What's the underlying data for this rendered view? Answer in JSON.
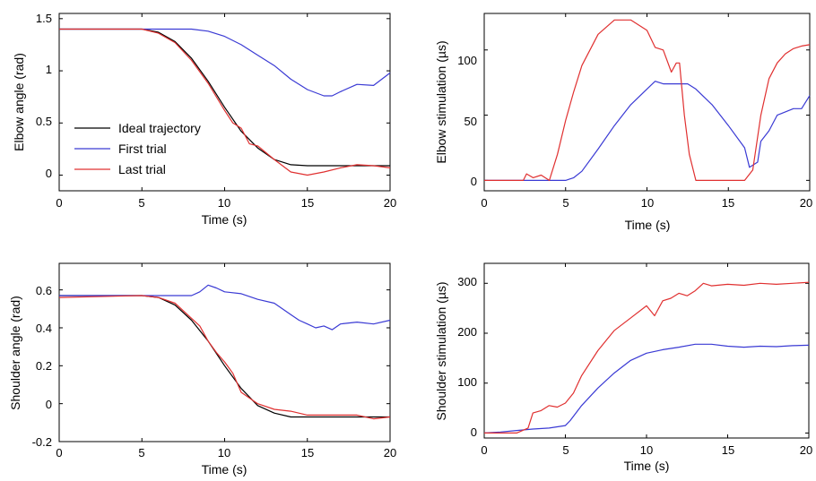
{
  "chart_data": [
    {
      "id": "elbow-angle",
      "type": "line",
      "xlabel": "Time (s)",
      "ylabel": "Elbow angle (rad)",
      "xlim": [
        0,
        20
      ],
      "ylim": [
        -0.15,
        1.55
      ],
      "xticks": [
        0,
        5,
        10,
        15,
        20
      ],
      "xtick_labels": [
        "0",
        "5",
        "10",
        "15",
        "20"
      ],
      "yticks": [
        0,
        0.5,
        1,
        1.5
      ],
      "ytick_labels": [
        "0",
        "0.5",
        "1",
        "1.5"
      ],
      "legend": {
        "placement": "center-left",
        "entries": [
          "Ideal trajectory",
          "First trial",
          "Last trial"
        ]
      },
      "series": [
        {
          "name": "Ideal trajectory",
          "color": "#000000",
          "x": [
            0,
            5,
            6,
            7,
            8,
            9,
            10,
            11,
            12,
            13,
            14,
            15,
            20
          ],
          "y": [
            1.4,
            1.4,
            1.37,
            1.28,
            1.12,
            0.9,
            0.65,
            0.42,
            0.26,
            0.15,
            0.1,
            0.09,
            0.09
          ]
        },
        {
          "name": "First trial",
          "color": "#3a3ad4",
          "x": [
            0,
            5,
            8,
            9,
            10,
            11,
            12,
            13,
            14,
            15,
            16,
            16.5,
            17,
            18,
            19,
            20
          ],
          "y": [
            1.4,
            1.4,
            1.4,
            1.38,
            1.33,
            1.25,
            1.15,
            1.05,
            0.92,
            0.82,
            0.76,
            0.76,
            0.8,
            0.87,
            0.86,
            0.98
          ]
        },
        {
          "name": "Last trial",
          "color": "#e03030",
          "x": [
            0,
            5,
            6,
            7,
            8,
            9,
            10,
            10.5,
            11,
            11.5,
            12,
            13,
            14,
            15,
            16,
            17,
            18,
            19,
            20
          ],
          "y": [
            1.4,
            1.4,
            1.36,
            1.27,
            1.1,
            0.88,
            0.62,
            0.5,
            0.45,
            0.3,
            0.28,
            0.15,
            0.03,
            0.0,
            0.03,
            0.07,
            0.1,
            0.09,
            0.07
          ]
        }
      ]
    },
    {
      "id": "elbow-stimulation",
      "type": "line",
      "xlabel": "Time (s)",
      "ylabel": "Elbow stimulation (µs)",
      "xlim": [
        0,
        20
      ],
      "ylim": [
        -8,
        128
      ],
      "xticks": [
        0,
        5,
        10,
        15,
        20
      ],
      "xtick_labels": [
        "0",
        "5",
        "10",
        "15",
        "20"
      ],
      "yticks": [
        0,
        50,
        100
      ],
      "ytick_labels": [
        "0",
        "50",
        "100"
      ],
      "series": [
        {
          "name": "Elbow stimulation, blue",
          "color": "#3a3ad4",
          "x": [
            0,
            5,
            5.5,
            6,
            7,
            8,
            9,
            10,
            10.5,
            11,
            12,
            12.5,
            13,
            14,
            15,
            16,
            16.3,
            16.8,
            17,
            17.5,
            18,
            19,
            19.5,
            20
          ],
          "y": [
            0,
            0,
            2,
            7,
            24,
            42,
            58,
            70,
            76,
            74,
            74,
            74,
            70,
            58,
            42,
            25,
            10,
            14,
            30,
            38,
            50,
            55,
            55,
            65
          ]
        },
        {
          "name": "Elbow stimulation, red",
          "color": "#e03030",
          "x": [
            0,
            2.4,
            2.6,
            3,
            3.5,
            4,
            4.5,
            5,
            5.5,
            6,
            7,
            8,
            9,
            10,
            10.5,
            11,
            11.5,
            11.8,
            12,
            12.3,
            12.6,
            13,
            13.2,
            16,
            16.5,
            17,
            17.5,
            18,
            18.5,
            19,
            19.5,
            20
          ],
          "y": [
            0,
            0,
            5,
            2,
            4,
            0,
            20,
            46,
            68,
            88,
            112,
            123,
            123,
            115,
            102,
            100,
            83,
            90,
            90,
            50,
            20,
            0,
            0,
            0,
            8,
            50,
            78,
            90,
            97,
            101,
            103,
            104
          ]
        }
      ]
    },
    {
      "id": "shoulder-angle",
      "type": "line",
      "xlabel": "Time (s)",
      "ylabel": "Shoulder angle (rad)",
      "xlim": [
        0,
        20
      ],
      "ylim": [
        -0.2,
        0.74
      ],
      "xticks": [
        0,
        5,
        10,
        15,
        20
      ],
      "xtick_labels": [
        "0",
        "5",
        "10",
        "15",
        "20"
      ],
      "yticks": [
        -0.2,
        0,
        0.2,
        0.4,
        0.6
      ],
      "ytick_labels": [
        "-0.2",
        "0",
        "0.2",
        "0.4",
        "0.6"
      ],
      "series": [
        {
          "name": "Ideal trajectory",
          "color": "#000000",
          "x": [
            0,
            5,
            6,
            7,
            8,
            9,
            10,
            11,
            12,
            13,
            14,
            15,
            20
          ],
          "y": [
            0.57,
            0.57,
            0.56,
            0.52,
            0.44,
            0.33,
            0.2,
            0.08,
            -0.01,
            -0.05,
            -0.07,
            -0.07,
            -0.07
          ]
        },
        {
          "name": "First trial",
          "color": "#3a3ad4",
          "x": [
            0,
            5,
            8,
            8.5,
            9,
            9.5,
            10,
            11,
            12,
            13,
            14,
            14.5,
            15,
            15.5,
            16,
            16.5,
            17,
            18,
            19,
            20
          ],
          "y": [
            0.57,
            0.57,
            0.57,
            0.59,
            0.625,
            0.61,
            0.59,
            0.58,
            0.55,
            0.53,
            0.47,
            0.44,
            0.42,
            0.4,
            0.41,
            0.39,
            0.42,
            0.43,
            0.42,
            0.44
          ]
        },
        {
          "name": "Last trial",
          "color": "#e03030",
          "x": [
            0,
            5,
            6,
            7,
            8,
            8.5,
            9,
            9.5,
            10,
            10.5,
            11,
            12,
            13,
            14,
            15,
            16,
            17,
            18,
            19,
            20
          ],
          "y": [
            0.56,
            0.57,
            0.56,
            0.53,
            0.45,
            0.41,
            0.33,
            0.27,
            0.22,
            0.16,
            0.06,
            0.0,
            -0.03,
            -0.04,
            -0.06,
            -0.06,
            -0.06,
            -0.06,
            -0.08,
            -0.07
          ]
        }
      ]
    },
    {
      "id": "shoulder-stimulation",
      "type": "line",
      "xlabel": "Time (s)",
      "ylabel": "Shoulder stimulation (µs)",
      "xlim": [
        0,
        20
      ],
      "ylim": [
        -10,
        340
      ],
      "xticks": [
        0,
        5,
        10,
        15,
        20
      ],
      "xtick_labels": [
        "0",
        "5",
        "10",
        "15",
        "20"
      ],
      "yticks": [
        0,
        100,
        200,
        300
      ],
      "ytick_labels": [
        "0",
        "100",
        "200",
        "300"
      ],
      "series": [
        {
          "name": "Shoulder stimulation, blue",
          "color": "#3a3ad4",
          "x": [
            0,
            1,
            2,
            3,
            4,
            5,
            5.3,
            6,
            7,
            8,
            9,
            10,
            11,
            12,
            13,
            14,
            15,
            16,
            17,
            18,
            19,
            20
          ],
          "y": [
            0,
            2,
            5,
            8,
            10,
            15,
            25,
            55,
            90,
            120,
            145,
            160,
            167,
            172,
            178,
            178,
            174,
            172,
            174,
            173,
            175,
            176
          ]
        },
        {
          "name": "Shoulder stimulation, red",
          "color": "#e03030",
          "x": [
            0,
            2,
            2.7,
            3,
            3.5,
            4,
            4.5,
            5,
            5.5,
            6,
            7,
            8,
            9,
            10,
            10.5,
            11,
            11.5,
            12,
            12.5,
            13,
            13.5,
            14,
            15,
            16,
            17,
            18,
            19,
            20
          ],
          "y": [
            0,
            0,
            10,
            40,
            45,
            55,
            52,
            60,
            80,
            115,
            165,
            205,
            230,
            255,
            235,
            265,
            270,
            280,
            275,
            285,
            300,
            295,
            298,
            296,
            300,
            298,
            300,
            302
          ]
        }
      ]
    }
  ],
  "panels": [
    {
      "x_tick_labels": [
        "0",
        "5",
        "10",
        "15",
        "20"
      ],
      "y_tick_labels": [
        "0",
        "0.5",
        "1",
        "1.5"
      ],
      "xlabel": "Time (s)",
      "ylabel": "Elbow angle (rad)",
      "legend": [
        "Ideal trajectory",
        "First trial",
        "Last trial"
      ]
    },
    {
      "x_tick_labels": [
        "0",
        "5",
        "10",
        "15",
        "20"
      ],
      "y_tick_labels": [
        "0",
        "50",
        "100"
      ],
      "xlabel": "Time (s)",
      "ylabel": "Elbow stimulation (µs)"
    },
    {
      "x_tick_labels": [
        "0",
        "5",
        "10",
        "15",
        "20"
      ],
      "y_tick_labels": [
        "-0.2",
        "0",
        "0.2",
        "0.4",
        "0.6"
      ],
      "xlabel": "Time (s)",
      "ylabel": "Shoulder angle (rad)"
    },
    {
      "x_tick_labels": [
        "0",
        "5",
        "10",
        "15",
        "20"
      ],
      "y_tick_labels": [
        "0",
        "100",
        "200",
        "300"
      ],
      "xlabel": "Time (s)",
      "ylabel": "Shoulder stimulation (µs)"
    }
  ]
}
